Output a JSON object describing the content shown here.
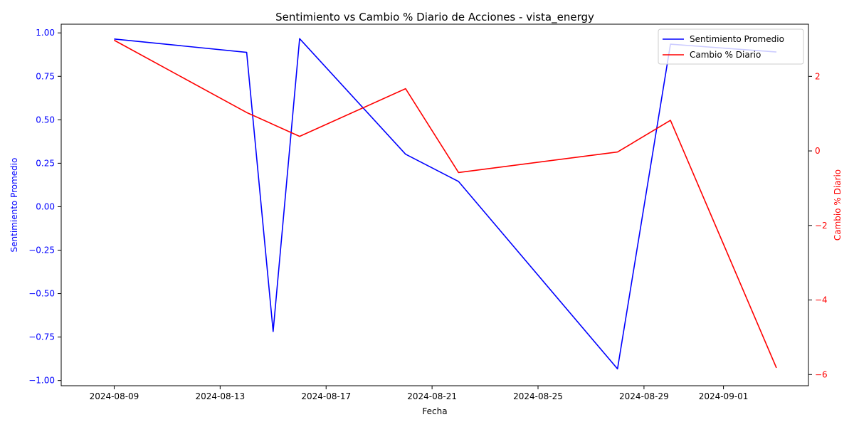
{
  "chart_data": {
    "type": "line",
    "title": "Sentimiento vs Cambio % Diario de Acciones - vista_energy",
    "xlabel": "Fecha",
    "ylabel_left": "Sentimiento Promedio",
    "ylabel_right": "Cambio % Diario",
    "x_ticks": [
      "2024-08-09",
      "2024-08-13",
      "2024-08-17",
      "2024-08-21",
      "2024-08-25",
      "2024-08-29",
      "2024-09-01"
    ],
    "y_left_ticks": [
      "1.00",
      "0.75",
      "0.50",
      "0.25",
      "0.00",
      "−0.25",
      "−0.50",
      "−0.75",
      "−1.00"
    ],
    "y_right_ticks": [
      "2",
      "0",
      "−2",
      "−4",
      "−6"
    ],
    "ylim_left": [
      -1.03,
      1.05
    ],
    "ylim_right": [
      -6.3,
      3.4
    ],
    "legend_position": "top-right",
    "grid": false,
    "series": [
      {
        "name": "Sentimiento Promedio",
        "axis": "left",
        "color": "#0000ff",
        "points": [
          [
            "2024-08-09",
            0.965
          ],
          [
            "2024-08-14",
            0.888
          ],
          [
            "2024-08-15",
            -0.718
          ],
          [
            "2024-08-16",
            0.967
          ],
          [
            "2024-08-20",
            0.302
          ],
          [
            "2024-08-22",
            0.145
          ],
          [
            "2024-08-28",
            -0.933
          ],
          [
            "2024-08-30",
            0.935
          ],
          [
            "2024-09-03",
            0.89
          ]
        ]
      },
      {
        "name": "Cambio % Diario",
        "axis": "right",
        "color": "#ff0000",
        "points": [
          [
            "2024-08-09",
            2.97
          ],
          [
            "2024-08-14",
            1.03
          ],
          [
            "2024-08-16",
            0.39
          ],
          [
            "2024-08-20",
            1.67
          ],
          [
            "2024-08-22",
            -0.58
          ],
          [
            "2024-08-28",
            -0.03
          ],
          [
            "2024-08-30",
            0.82
          ],
          [
            "2024-09-03",
            -5.82
          ]
        ]
      }
    ]
  }
}
